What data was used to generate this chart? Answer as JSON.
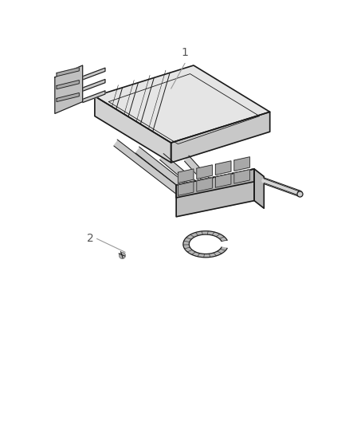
{
  "background_color": "#ffffff",
  "line_color": "#1a1a1a",
  "label_color": "#555555",
  "label_line_color": "#999999",
  "label1": "1",
  "label2": "2",
  "fig_width": 4.38,
  "fig_height": 5.33,
  "dpi": 100
}
